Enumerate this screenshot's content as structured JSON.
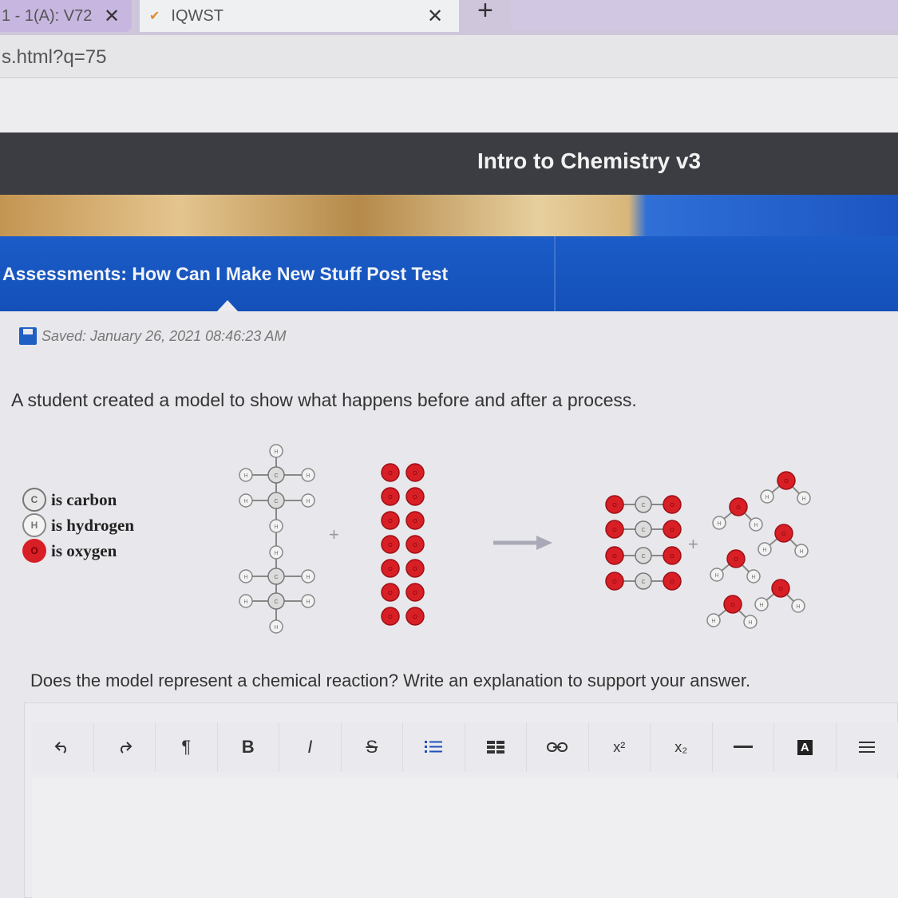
{
  "browser": {
    "tabs": [
      {
        "label": "1 - 1(A): V72"
      },
      {
        "label": "IQWST"
      }
    ],
    "url": "s.html?q=75"
  },
  "site": {
    "title": "Intro to Chemistry v3",
    "assessment_title": "Assessments: How Can I Make New Stuff Post Test"
  },
  "status": {
    "saved_text": "Saved: January 26, 2021 08:46:23 AM"
  },
  "question": {
    "prompt": "A student created a model to show what happens before and after a process.",
    "task": "Does the model represent a chemical reaction? Write an explanation to support your answer."
  },
  "legend": [
    {
      "symbol": "C",
      "label": "is carbon",
      "icon": "carbon-atom-icon"
    },
    {
      "symbol": "H",
      "label": "is hydrogen",
      "icon": "hydrogen-atom-icon"
    },
    {
      "symbol": "O",
      "label": "is oxygen",
      "icon": "oxygen-atom-icon"
    }
  ],
  "diagram": {
    "plus_sign": "+",
    "atom_letters": {
      "carbon": "C",
      "hydrogen": "H",
      "oxygen": "O"
    }
  },
  "toolbar": {
    "bold": "B",
    "italic": "I",
    "superscript": "x²",
    "subscript": "x₂",
    "color_label": "A",
    "buttons": [
      "undo-icon",
      "redo-icon",
      "paragraph-icon",
      "bold",
      "italic",
      "strikethrough-icon",
      "bulleted-list-icon",
      "table-icon",
      "link-icon",
      "superscript",
      "subscript",
      "horizontal-rule-icon",
      "text-color",
      "align-icon"
    ]
  },
  "colors": {
    "oxygen": "#d81f25",
    "header_dark": "#3c3d42",
    "banner_blue": "#1b5cc8"
  }
}
